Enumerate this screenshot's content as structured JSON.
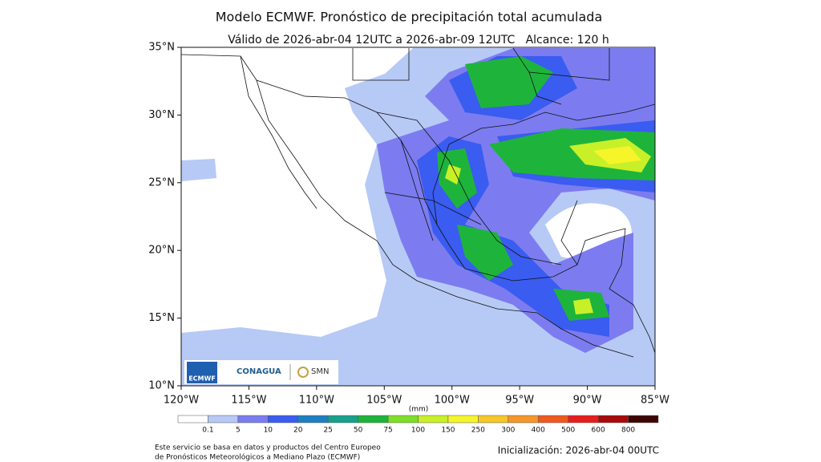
{
  "map": {
    "title": "Modelo ECMWF. Pronóstico de precipitación total acumulada",
    "subtitle": "Válido de 2026-abr-04 12UTC a 2026-abr-09 12UTC   Alcance: 120 h",
    "lonlim": [
      -120,
      -85
    ],
    "latlim": [
      10,
      35
    ],
    "lon_ticks": [
      {
        "value": -120,
        "label": "120°W"
      },
      {
        "value": -115,
        "label": "115°W"
      },
      {
        "value": -110,
        "label": "110°W"
      },
      {
        "value": -105,
        "label": "105°W"
      },
      {
        "value": -100,
        "label": "100°W"
      },
      {
        "value": -95,
        "label": "95°W"
      },
      {
        "value": -90,
        "label": "90°W"
      },
      {
        "value": -85,
        "label": "85°W"
      }
    ],
    "lat_ticks": [
      {
        "value": 35,
        "label": "35°N"
      },
      {
        "value": 30,
        "label": "30°N"
      },
      {
        "value": 25,
        "label": "25°N"
      },
      {
        "value": 20,
        "label": "20°N"
      },
      {
        "value": 15,
        "label": "15°N"
      },
      {
        "value": 10,
        "label": "10°N"
      }
    ],
    "colorbar": {
      "unit": "(mm)",
      "levels": [
        0.1,
        5,
        10,
        20,
        25,
        50,
        75,
        100,
        150,
        250,
        300,
        400,
        500,
        600,
        800
      ],
      "colors": [
        "#ffffff",
        "#b7c9f5",
        "#7c7cf0",
        "#3a5cf0",
        "#1e7fc0",
        "#17a08c",
        "#1eb43c",
        "#7ede28",
        "#c8f028",
        "#f5f52a",
        "#f5c828",
        "#f59628",
        "#f05a1e",
        "#e61e1e",
        "#a80a0a",
        "#3c0505"
      ]
    },
    "logos": [
      "ECMWF",
      "CONAGUA",
      "SMN"
    ],
    "footer": [
      "Este servicio se basa en datos y productos del Centro Europeo",
      "de Pronósticos Meteorológicos a Mediano Plazo (ECMWF)"
    ],
    "initialization": "Inicialización: 2026-abr-04 00UTC"
  }
}
